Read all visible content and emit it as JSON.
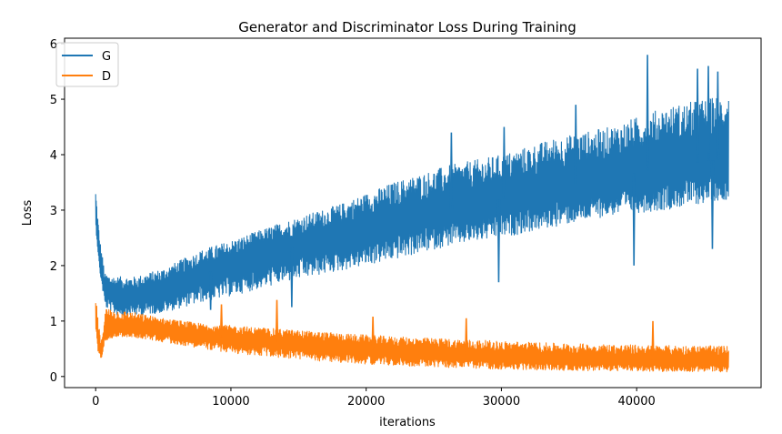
{
  "chart_data": {
    "type": "line",
    "title": "Generator and Discriminator Loss During Training",
    "xlabel": "iterations",
    "ylabel": "Loss",
    "xlim": [
      -2300,
      49200
    ],
    "ylim": [
      -0.2,
      6.1
    ],
    "xticks": [
      0,
      10000,
      20000,
      30000,
      40000
    ],
    "yticks": [
      0,
      1,
      2,
      3,
      4,
      5,
      6
    ],
    "grid": false,
    "legend_position": "upper-left",
    "series": [
      {
        "name": "G",
        "color": "#1f77b4",
        "x": [
          0,
          300,
          700,
          1500,
          3000,
          5000,
          8000,
          10000,
          14000,
          18000,
          22000,
          26000,
          30000,
          34000,
          38000,
          42000,
          46800
        ],
        "mid": [
          2.9,
          2.0,
          1.55,
          1.45,
          1.45,
          1.55,
          1.85,
          2.0,
          2.3,
          2.55,
          2.8,
          3.0,
          3.2,
          3.4,
          3.6,
          3.75,
          3.95
        ],
        "upper": [
          3.4,
          2.5,
          1.85,
          1.8,
          1.8,
          1.95,
          2.3,
          2.45,
          2.8,
          3.1,
          3.5,
          3.8,
          4.0,
          4.3,
          4.5,
          4.85,
          5.1
        ],
        "lower": [
          2.7,
          1.9,
          1.25,
          1.1,
          1.1,
          1.15,
          1.35,
          1.45,
          1.7,
          1.9,
          2.1,
          2.35,
          2.5,
          2.7,
          2.9,
          3.0,
          3.2
        ],
        "peaks": [
          [
            26300,
            4.4
          ],
          [
            30200,
            4.5
          ],
          [
            35500,
            4.9
          ],
          [
            40800,
            5.8
          ],
          [
            44500,
            5.55
          ],
          [
            45300,
            5.6
          ],
          [
            46000,
            5.5
          ]
        ],
        "dips": [
          [
            8500,
            1.2
          ],
          [
            14500,
            1.25
          ],
          [
            29800,
            1.7
          ],
          [
            39800,
            2.0
          ],
          [
            45600,
            2.3
          ]
        ]
      },
      {
        "name": "D",
        "color": "#ff7f0e",
        "x": [
          0,
          200,
          400,
          700,
          1500,
          3000,
          5000,
          8000,
          10000,
          14000,
          18000,
          22000,
          26000,
          30000,
          34000,
          38000,
          42000,
          46800
        ],
        "mid": [
          1.1,
          0.6,
          0.4,
          0.85,
          0.9,
          0.88,
          0.85,
          0.75,
          0.68,
          0.6,
          0.52,
          0.45,
          0.4,
          0.35,
          0.32,
          0.3,
          0.28,
          0.27
        ],
        "upper": [
          1.45,
          1.0,
          0.6,
          1.25,
          1.2,
          1.15,
          1.05,
          0.95,
          0.92,
          0.85,
          0.78,
          0.72,
          0.68,
          0.64,
          0.6,
          0.58,
          0.56,
          0.55
        ],
        "lower": [
          0.8,
          0.4,
          0.3,
          0.65,
          0.72,
          0.7,
          0.62,
          0.5,
          0.42,
          0.33,
          0.25,
          0.2,
          0.16,
          0.13,
          0.11,
          0.1,
          0.09,
          0.08
        ],
        "peaks": [
          [
            9300,
            1.3
          ],
          [
            13400,
            1.38
          ],
          [
            20500,
            1.08
          ],
          [
            27400,
            1.05
          ],
          [
            41200,
            1.0
          ]
        ],
        "dips": []
      }
    ]
  }
}
